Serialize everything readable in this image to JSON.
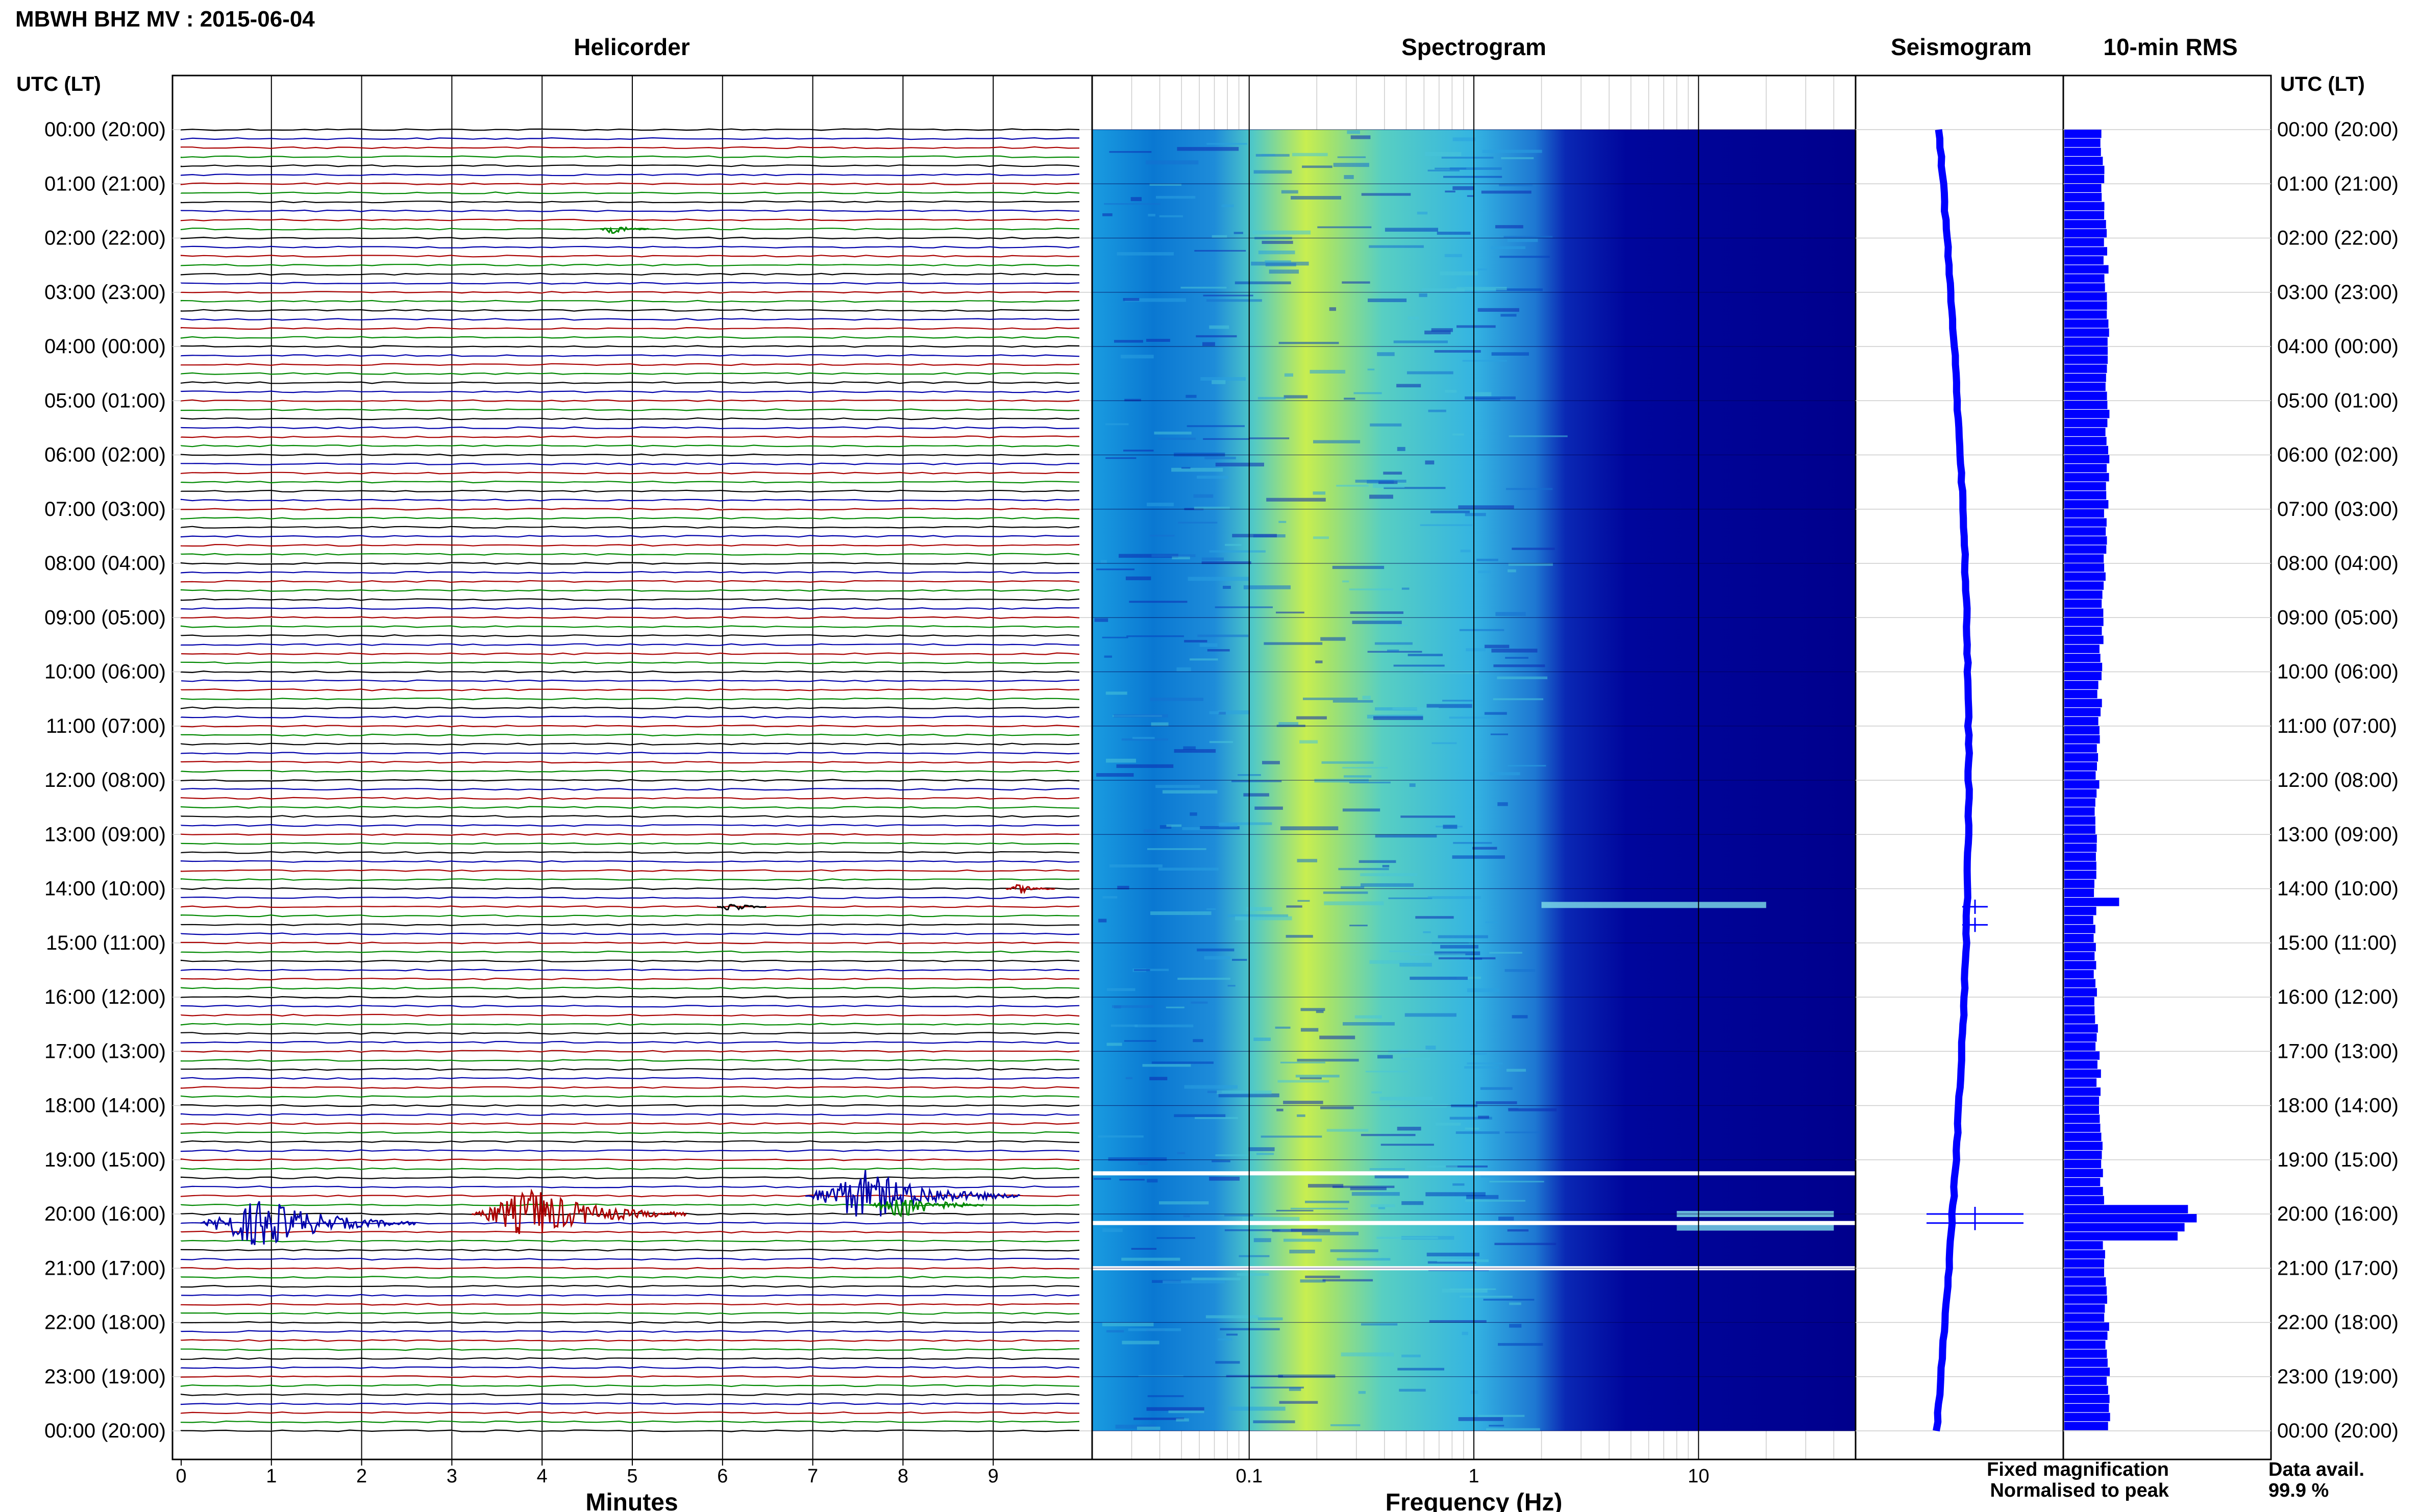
{
  "header": {
    "title": "MBWH BHZ MV : 2015-06-04"
  },
  "panels": {
    "helicorder": "Helicorder",
    "spectrogram": "Spectrogram",
    "seismogram": "Seismogram",
    "rms": "10-min RMS"
  },
  "axis": {
    "time_label": "UTC (LT)",
    "time_ticks": [
      "00:00 (20:00)",
      "01:00 (21:00)",
      "02:00 (22:00)",
      "03:00 (23:00)",
      "04:00 (00:00)",
      "05:00 (01:00)",
      "06:00 (02:00)",
      "07:00 (03:00)",
      "08:00 (04:00)",
      "09:00 (05:00)",
      "10:00 (06:00)",
      "11:00 (07:00)",
      "12:00 (08:00)",
      "13:00 (09:00)",
      "14:00 (10:00)",
      "15:00 (11:00)",
      "16:00 (12:00)",
      "17:00 (13:00)",
      "18:00 (14:00)",
      "19:00 (15:00)",
      "20:00 (16:00)",
      "21:00 (17:00)",
      "22:00 (18:00)",
      "23:00 (19:00)",
      "00:00 (20:00)"
    ]
  },
  "legend": {
    "fixed": "Fixed magnification",
    "normalised": "Normalised to peak",
    "fixed_color": "#0000ff",
    "normalised_color": "#ff0000",
    "avail_label": "Data avail.",
    "avail_value": "99.9 %"
  },
  "colors": {
    "trace_colors": [
      "#000000",
      "#0000aa",
      "#aa0000",
      "#008800"
    ],
    "seismogram": "#0000ff",
    "rms_bar": "#0000ff",
    "spec_low": "#00008c",
    "spec_high": "#e6f040"
  },
  "chart_data": [
    {
      "type": "line",
      "title": "Helicorder",
      "xlabel": "Minutes",
      "x_ticks": [
        "0",
        "1",
        "2",
        "3",
        "4",
        "5",
        "6",
        "7",
        "8",
        "9"
      ],
      "xlim": [
        0,
        10
      ],
      "rows_per_hour": 6,
      "hours": 24,
      "events": [
        {
          "time_utc": "01:50",
          "minute": 4.8,
          "amplitude": "small",
          "color": "green"
        },
        {
          "time_utc": "14:00",
          "minute": 9.3,
          "amplitude": "small",
          "color": "red"
        },
        {
          "time_utc": "14:20",
          "minute": 6.1,
          "amplitude": "small",
          "color": "black"
        },
        {
          "time_utc": "19:40",
          "minute": 7.6,
          "amplitude": "large",
          "color": "blue"
        },
        {
          "time_utc": "19:50",
          "minute": 8.0,
          "amplitude": "medium",
          "color": "green"
        },
        {
          "time_utc": "20:00",
          "minute": 3.9,
          "amplitude": "large",
          "color": "red"
        },
        {
          "time_utc": "20:10",
          "minute": 0.9,
          "amplitude": "large",
          "color": "blue"
        }
      ]
    },
    {
      "type": "heatmap",
      "title": "Spectrogram",
      "xlabel": "Frequency (Hz)",
      "x_scale": "log",
      "x_ticks": [
        "0.1",
        "1",
        "10"
      ],
      "xlim": [
        0.02,
        50
      ],
      "gaps_utc": [
        "19:15",
        "20:10",
        "21:00"
      ]
    },
    {
      "type": "line",
      "title": "Seismogram",
      "events_utc": [
        "14:20",
        "14:40",
        "20:00",
        "20:10"
      ]
    },
    {
      "type": "bar",
      "title": "10-min RMS",
      "high_intervals_utc": [
        "14:10",
        "19:50",
        "20:00",
        "20:10",
        "20:20"
      ]
    }
  ]
}
